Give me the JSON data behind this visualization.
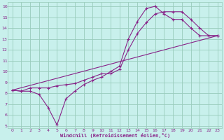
{
  "bg_color": "#c8f0ec",
  "line_color": "#882288",
  "grid_color": "#99ccbb",
  "xlabel": "Windchill (Refroidissement éolien,°C)",
  "xlim": [
    -0.5,
    23.5
  ],
  "ylim": [
    4.8,
    16.4
  ],
  "xticks": [
    0,
    1,
    2,
    3,
    4,
    5,
    6,
    7,
    8,
    9,
    10,
    11,
    12,
    13,
    14,
    15,
    16,
    17,
    18,
    19,
    20,
    21,
    22,
    23
  ],
  "yticks": [
    5,
    6,
    7,
    8,
    9,
    10,
    11,
    12,
    13,
    14,
    15,
    16
  ],
  "line1_x": [
    0,
    1,
    2,
    3,
    4,
    5,
    6,
    7,
    8,
    9,
    10,
    11,
    12,
    13,
    14,
    15,
    16,
    17,
    18,
    19,
    20,
    21,
    22,
    23
  ],
  "line1_y": [
    8.3,
    8.2,
    8.2,
    7.9,
    6.7,
    5.1,
    7.5,
    8.2,
    8.8,
    9.2,
    9.5,
    10.0,
    10.5,
    13.0,
    14.6,
    15.8,
    16.0,
    15.3,
    14.8,
    14.8,
    14.0,
    13.3,
    13.3,
    13.3
  ],
  "line2_x": [
    0,
    1,
    2,
    3,
    4,
    5,
    6,
    7,
    8,
    9,
    10,
    11,
    12,
    13,
    14,
    15,
    16,
    17,
    18,
    19,
    20,
    21,
    22,
    23
  ],
  "line2_y": [
    8.3,
    8.2,
    8.5,
    8.5,
    8.5,
    8.7,
    8.8,
    8.9,
    9.2,
    9.5,
    9.8,
    9.8,
    10.2,
    12.0,
    13.5,
    14.5,
    15.3,
    15.5,
    15.5,
    15.5,
    14.8,
    14.0,
    13.3,
    13.3
  ],
  "line3_x": [
    0,
    23
  ],
  "line3_y": [
    8.3,
    13.3
  ]
}
